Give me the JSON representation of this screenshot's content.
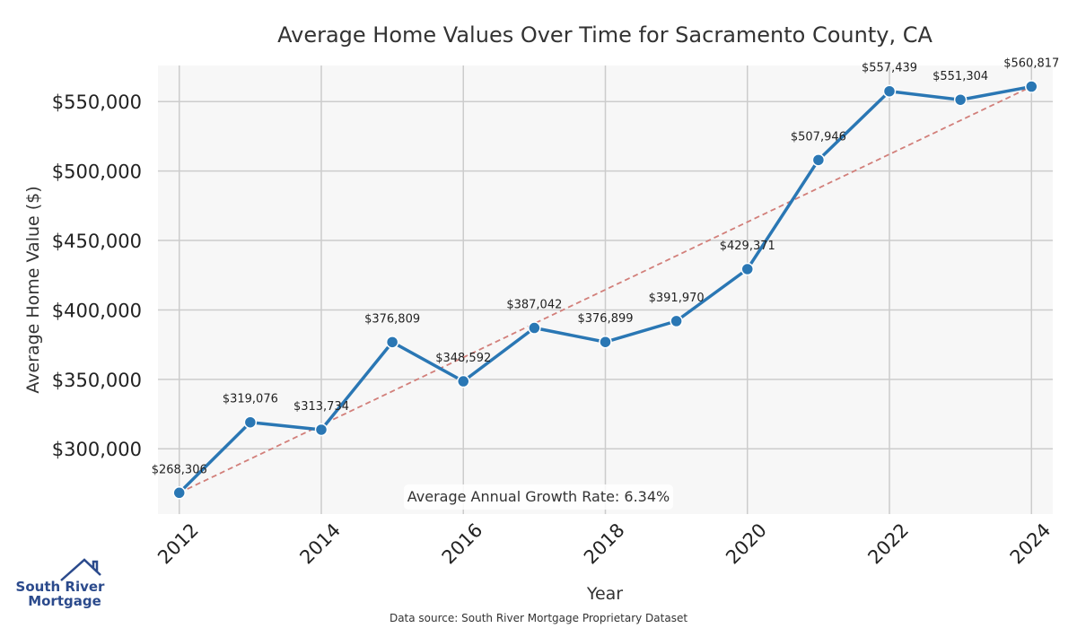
{
  "chart_data": {
    "type": "line",
    "title": "Average Home Values Over Time for Sacramento County, CA",
    "xlabel": "Year",
    "ylabel": "Average Home Value ($)",
    "x": [
      2012,
      2013,
      2014,
      2015,
      2016,
      2017,
      2018,
      2019,
      2020,
      2021,
      2022,
      2023,
      2024
    ],
    "series": [
      {
        "name": "Average Home Value",
        "values": [
          268306,
          319076,
          313734,
          376809,
          348592,
          387042,
          376899,
          391970,
          429371,
          507946,
          557439,
          551304,
          560817
        ],
        "labels": [
          "$268,306",
          "$319,076",
          "$313,734",
          "$376,809",
          "$348,592",
          "$387,042",
          "$376,899",
          "$391,970",
          "$429,371",
          "$507,946",
          "$557,439",
          "$551,304",
          "$560,817"
        ],
        "color": "#2a77b4"
      }
    ],
    "trendline": {
      "start": [
        2012,
        268306
      ],
      "end": [
        2024,
        560817
      ],
      "color": "#d27f7a",
      "style": "dashed"
    },
    "xticks": [
      2012,
      2014,
      2016,
      2018,
      2020,
      2022,
      2024
    ],
    "yticks": [
      300000,
      350000,
      400000,
      450000,
      500000,
      550000
    ],
    "ytick_labels": [
      "$300,000",
      "$350,000",
      "$400,000",
      "$450,000",
      "$500,000",
      "$550,000"
    ],
    "xlim": [
      2011.7,
      2024.3
    ],
    "ylim": [
      253000,
      576000
    ],
    "grid": true,
    "annotation": "Average Annual Growth Rate: 6.34%",
    "source": "Data source: South River Mortgage Proprietary Dataset"
  },
  "logo": {
    "line1": "South River",
    "line2": "Mortgage",
    "color": "#2b4a8c"
  }
}
